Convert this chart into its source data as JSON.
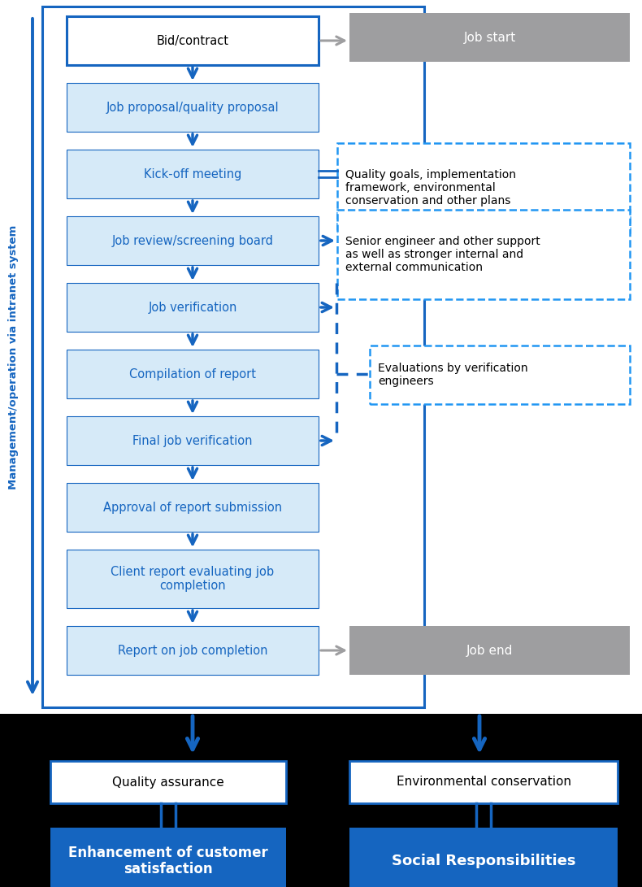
{
  "fig_width": 7.9,
  "fig_height": 10.91,
  "blue_dark": "#1565c0",
  "blue_medium": "#2196f3",
  "blue_light": "#d6eaf8",
  "gray_box": "#9e9ea0",
  "white": "#ffffff",
  "black": "#000000",
  "flow_labels": [
    "Bid/contract",
    "Job proposal/quality proposal",
    "Kick-off meeting",
    "Job review/screening board",
    "Job verification",
    "Compilation of report",
    "Final job verification",
    "Approval of report submission",
    "Client report evaluating job\ncompletion",
    "Report on job completion"
  ],
  "flow_styles": [
    "white_border",
    "light_blue",
    "light_blue",
    "light_blue",
    "light_blue",
    "light_blue",
    "light_blue",
    "light_blue",
    "light_blue",
    "light_blue"
  ],
  "vertical_label": "Management/operation via intranet system",
  "side_labels": {
    "job_start": "Job start",
    "quality_goals": "Quality goals, implementation\nframework, environmental\nconservation and other plans",
    "senior_eng": "Senior engineer and other support\nas well as stronger internal and\nexternal communication",
    "evaluations": "Evaluations by verification\nengineers",
    "job_end": "Job end"
  },
  "bottom": {
    "qa_label": "Quality assurance",
    "ec_label": "Environmental conservation",
    "enh_label": "Enhancement of customer\nsatisfaction",
    "sr_label": "Social Responsibilities"
  }
}
